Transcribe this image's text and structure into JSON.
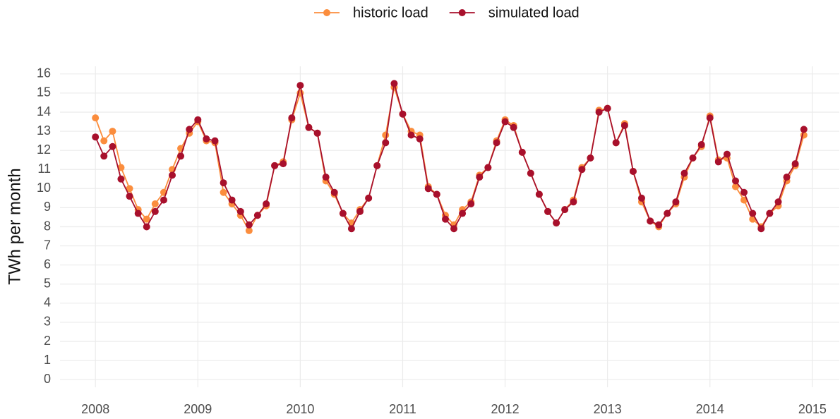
{
  "chart_data": {
    "type": "line",
    "y_label": "TWh per month",
    "x": [
      2008,
      2008.083,
      2008.167,
      2008.25,
      2008.333,
      2008.417,
      2008.5,
      2008.583,
      2008.667,
      2008.75,
      2008.833,
      2008.917,
      2009,
      2009.083,
      2009.167,
      2009.25,
      2009.333,
      2009.417,
      2009.5,
      2009.583,
      2009.667,
      2009.75,
      2009.833,
      2009.917,
      2010,
      2010.083,
      2010.167,
      2010.25,
      2010.333,
      2010.417,
      2010.5,
      2010.583,
      2010.667,
      2010.75,
      2010.833,
      2010.917,
      2011,
      2011.083,
      2011.167,
      2011.25,
      2011.333,
      2011.417,
      2011.5,
      2011.583,
      2011.667,
      2011.75,
      2011.833,
      2011.917,
      2012,
      2012.083,
      2012.167,
      2012.25,
      2012.333,
      2012.417,
      2012.5,
      2012.583,
      2012.667,
      2012.75,
      2012.833,
      2012.917,
      2013,
      2013.083,
      2013.167,
      2013.25,
      2013.333,
      2013.417,
      2013.5,
      2013.583,
      2013.667,
      2013.75,
      2013.833,
      2013.917,
      2014,
      2014.083,
      2014.167,
      2014.25,
      2014.333,
      2014.417,
      2014.5,
      2014.583,
      2014.667,
      2014.75,
      2014.833,
      2014.917
    ],
    "series": [
      {
        "name": "historic load",
        "color": "#fb8d3d",
        "values": [
          13.7,
          12.5,
          13.0,
          11.1,
          10.0,
          8.9,
          8.4,
          9.2,
          9.8,
          11.0,
          12.1,
          12.9,
          13.5,
          12.5,
          12.4,
          9.8,
          9.2,
          8.6,
          7.8,
          8.6,
          9.1,
          11.2,
          11.4,
          13.6,
          15.0,
          13.2,
          12.9,
          10.4,
          9.7,
          8.7,
          8.2,
          8.9,
          9.5,
          11.2,
          12.8,
          15.3,
          13.9,
          13.0,
          12.8,
          10.1,
          9.7,
          8.6,
          8.1,
          8.9,
          9.3,
          10.7,
          11.1,
          12.5,
          13.6,
          13.3,
          11.9,
          10.8,
          9.7,
          8.8,
          8.2,
          8.9,
          9.4,
          11.1,
          11.6,
          14.1,
          14.2,
          12.4,
          13.4,
          10.9,
          9.3,
          8.3,
          8.0,
          8.7,
          9.2,
          10.6,
          11.6,
          12.2,
          13.8,
          11.5,
          11.6,
          10.1,
          9.4,
          8.4,
          8.0,
          8.7,
          9.1,
          10.4,
          11.2,
          12.8
        ]
      },
      {
        "name": "simulated load",
        "color": "#a8102c",
        "values": [
          12.7,
          11.7,
          12.2,
          10.5,
          9.6,
          8.7,
          8.0,
          8.8,
          9.4,
          10.7,
          11.7,
          13.1,
          13.6,
          12.6,
          12.5,
          10.3,
          9.4,
          8.8,
          8.1,
          8.6,
          9.2,
          11.2,
          11.3,
          13.7,
          15.4,
          13.2,
          12.9,
          10.6,
          9.8,
          8.7,
          7.9,
          8.8,
          9.5,
          11.2,
          12.4,
          15.5,
          13.9,
          12.8,
          12.6,
          10.0,
          9.7,
          8.4,
          7.9,
          8.7,
          9.2,
          10.6,
          11.1,
          12.4,
          13.5,
          13.2,
          11.9,
          10.8,
          9.7,
          8.8,
          8.2,
          8.9,
          9.3,
          11.0,
          11.6,
          14.0,
          14.2,
          12.4,
          13.3,
          10.9,
          9.5,
          8.3,
          8.1,
          8.7,
          9.3,
          10.8,
          11.6,
          12.3,
          13.7,
          11.4,
          11.8,
          10.4,
          9.8,
          8.7,
          7.9,
          8.7,
          9.3,
          10.6,
          11.3,
          13.1
        ]
      }
    ],
    "xlim": [
      2007.654,
      2015.263
    ],
    "xticks": [
      2008,
      2009,
      2010,
      2011,
      2012,
      2013,
      2014,
      2015
    ],
    "ylim": [
      -0.4,
      16.4
    ],
    "yticks": [
      0,
      1,
      2,
      3,
      4,
      5,
      6,
      7,
      8,
      9,
      10,
      11,
      12,
      13,
      14,
      15,
      16
    ],
    "grid": true,
    "legend": "top"
  }
}
